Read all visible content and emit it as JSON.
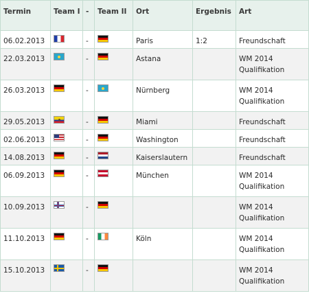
{
  "headers": {
    "termin": "Termin",
    "team1": "Team I",
    "sep": "-",
    "team2": "Team II",
    "ort": "Ort",
    "ergebnis": "Ergebnis",
    "art": "Art"
  },
  "matches": [
    {
      "date": "06.02.2013",
      "team1_flag": "france-flag-icon",
      "sep": "-",
      "team2_flag": "germany-flag-icon",
      "venue": "Paris",
      "result": "1:2",
      "type": "Freundschaft"
    },
    {
      "date": "22.03.2013",
      "team1_flag": "kazakhstan-flag-icon",
      "sep": "-",
      "team2_flag": "germany-flag-icon",
      "venue": "Astana",
      "result": "",
      "type": "WM 2014 Qualifikation"
    },
    {
      "date": "26.03.2013",
      "team1_flag": "germany-flag-icon",
      "sep": "-",
      "team2_flag": "kazakhstan-flag-icon",
      "venue": "Nürnberg",
      "result": "",
      "type": "WM 2014 Qualifikation"
    },
    {
      "date": "29.05.2013",
      "team1_flag": "ecuador-flag-icon",
      "sep": "-",
      "team2_flag": "germany-flag-icon",
      "venue": "Miami",
      "result": "",
      "type": "Freundschaft"
    },
    {
      "date": "02.06.2013",
      "team1_flag": "usa-flag-icon",
      "sep": "-",
      "team2_flag": "germany-flag-icon",
      "venue": "Washington",
      "result": "",
      "type": "Freundschaft"
    },
    {
      "date": "14.08.2013",
      "team1_flag": "germany-flag-icon",
      "sep": "-",
      "team2_flag": "netherlands-flag-icon",
      "venue": "Kaiserslautern",
      "result": "",
      "type": "Freundschaft"
    },
    {
      "date": "06.09.2013",
      "team1_flag": "germany-flag-icon",
      "sep": "-",
      "team2_flag": "austria-flag-icon",
      "venue": "München",
      "result": "",
      "type": "WM 2014 Qualifikation"
    },
    {
      "date": "10.09.2013",
      "team1_flag": "faroe-islands-flag-icon",
      "sep": "-",
      "team2_flag": "germany-flag-icon",
      "venue": "",
      "result": "",
      "type": "WM 2014 Qualifikation"
    },
    {
      "date": "11.10.2013",
      "team1_flag": "germany-flag-icon",
      "sep": "-",
      "team2_flag": "ireland-flag-icon",
      "venue": "Köln",
      "result": "",
      "type": "WM 2014 Qualifikation"
    },
    {
      "date": "15.10.2013",
      "team1_flag": "sweden-flag-icon",
      "sep": "-",
      "team2_flag": "germany-flag-icon",
      "venue": "",
      "result": "",
      "type": "WM 2014 Qualifikation"
    }
  ]
}
